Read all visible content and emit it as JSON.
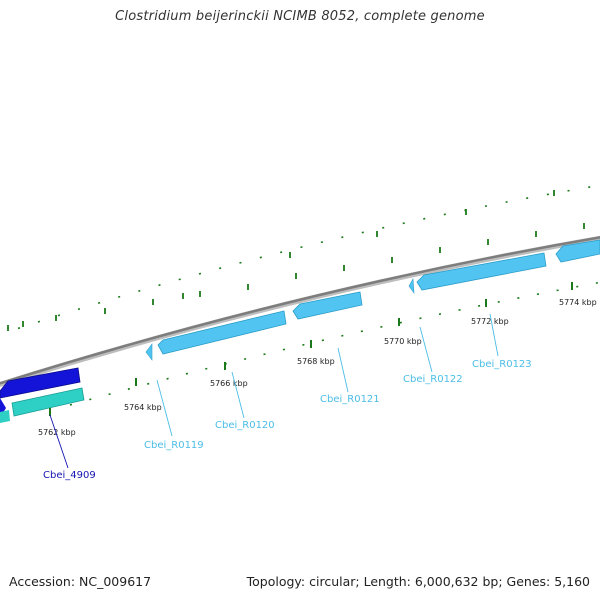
{
  "header": {
    "title": "Clostridium beijerinckii NCIMB 8052, complete genome"
  },
  "footer": {
    "accession": "Accession: NC_009617",
    "stats": "Topology: circular; Length: 6,000,632 bp; Genes: 5,160"
  },
  "colors": {
    "backbone": "#8a8a8a",
    "tick": "#1a7a1a",
    "cds_forward": "#1414d8",
    "cds_reverse": "#2ecfc4",
    "rna": "#52c4f2",
    "label_rna": "#4bbde6",
    "label_cds": "#1414b0"
  },
  "scale": {
    "tick_labels": [
      "5762 kbp",
      "5764 kbp",
      "5766 kbp",
      "5768 kbp",
      "5770 kbp",
      "5772 kbp",
      "5774 kbp"
    ]
  },
  "features": {
    "gene_labels": [
      {
        "text": "Cbei_4909",
        "kind": "cds"
      },
      {
        "text": "Cbei_R0119",
        "kind": "rna"
      },
      {
        "text": "Cbei_R0120",
        "kind": "rna"
      },
      {
        "text": "Cbei_R0121",
        "kind": "rna"
      },
      {
        "text": "Cbei_R0122",
        "kind": "rna"
      },
      {
        "text": "Cbei_R0123",
        "kind": "rna"
      }
    ]
  }
}
